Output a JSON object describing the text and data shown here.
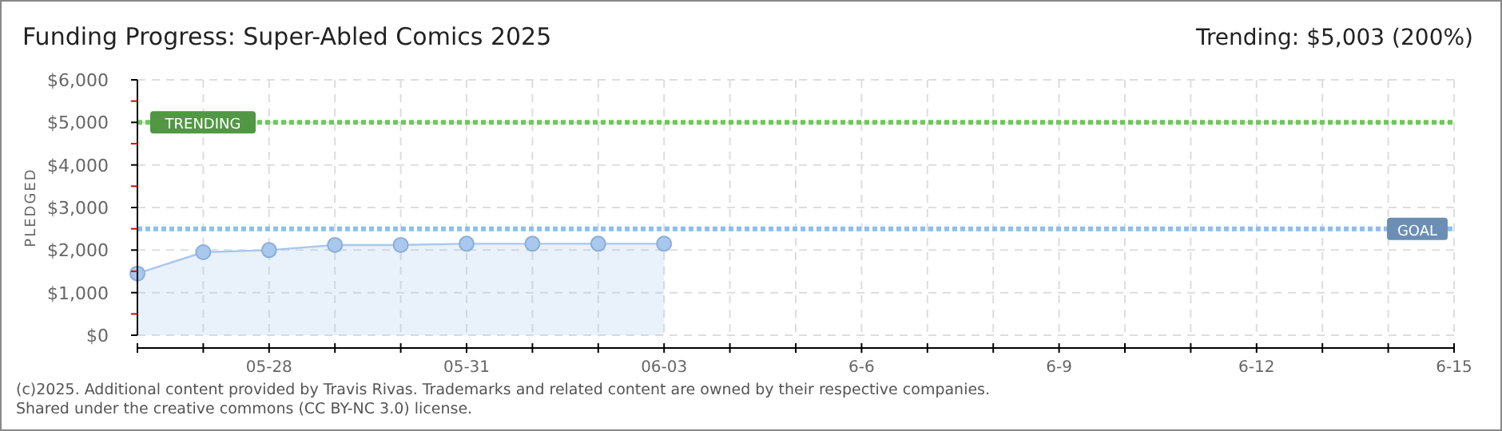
{
  "chart_data": {
    "type": "area",
    "title": "Funding Progress: Super-Abled Comics 2025",
    "ylabel": "PLEDGED",
    "annotations": [
      "Trending:  $5,003 (200%)",
      "(c)2025. Additional content provided by Travis Rivas. Trademarks and related content are owned by their respective companies.",
      "Shared under the creative commons (CC BY-NC 3.0) license."
    ],
    "x": [
      "2025-05-26",
      "2025-05-27",
      "2025-05-28",
      "2025-05-29",
      "2025-05-30",
      "2025-05-31",
      "2025-06-01",
      "2025-06-02",
      "2025-06-03"
    ],
    "series": [
      {
        "color": "#a9c8ee",
        "values": [
          1450,
          1950,
          2000,
          2120,
          2120,
          2150,
          2150,
          2150,
          2150
        ]
      }
    ],
    "xlim": [
      "2025-05-26",
      "2025-06-15"
    ],
    "xticks": [
      {
        "value": "2025-05-26",
        "label": null
      },
      {
        "value": "2025-05-27",
        "label": null
      },
      {
        "value": "2025-05-28",
        "label": "05-28"
      },
      {
        "value": "2025-05-29",
        "label": null
      },
      {
        "value": "2025-05-30",
        "label": null
      },
      {
        "value": "2025-05-31",
        "label": "05-31"
      },
      {
        "value": "2025-06-01",
        "label": null
      },
      {
        "value": "2025-06-02",
        "label": null
      },
      {
        "value": "2025-06-03",
        "label": "06-03"
      },
      {
        "value": "2025-06-04",
        "label": null
      },
      {
        "value": "2025-06-05",
        "label": null
      },
      {
        "value": "2025-06-06",
        "label": "6-6"
      },
      {
        "value": "2025-06-07",
        "label": null
      },
      {
        "value": "2025-06-08",
        "label": null
      },
      {
        "value": "2025-06-09",
        "label": "6-9"
      },
      {
        "value": "2025-06-10",
        "label": null
      },
      {
        "value": "2025-06-11",
        "label": null
      },
      {
        "value": "2025-06-12",
        "label": "6-12"
      },
      {
        "value": "2025-06-13",
        "label": null
      },
      {
        "value": "2025-06-14",
        "label": null
      },
      {
        "value": "2025-06-15",
        "label": "6-15"
      }
    ],
    "ylim": [
      0,
      6000
    ],
    "yticks": [
      {
        "value": 0,
        "label": "$0"
      },
      {
        "value": 500,
        "label": null
      },
      {
        "value": 1000,
        "label": "$1,000"
      },
      {
        "value": 1500,
        "label": null
      },
      {
        "value": 2000,
        "label": "$2,000"
      },
      {
        "value": 2500,
        "label": null
      },
      {
        "value": 3000,
        "label": "$3,000"
      },
      {
        "value": 3500,
        "label": null
      },
      {
        "value": 4000,
        "label": "$4,000"
      },
      {
        "value": 4500,
        "label": null
      },
      {
        "value": 5000,
        "label": "$5,000"
      },
      {
        "value": 5500,
        "label": null
      },
      {
        "value": 6000,
        "label": "$6,000"
      }
    ],
    "ref_lines": [
      {
        "axis": "y",
        "value": 5003,
        "label": "TRENDING",
        "color": "#6cc95a",
        "line_style": "dotted"
      },
      {
        "axis": "y",
        "value": 2500,
        "label": "GOAL",
        "color": "#8fbdf0",
        "line_style": "dotted"
      }
    ],
    "grid": true,
    "marker": "circle",
    "line_style": "solid"
  }
}
